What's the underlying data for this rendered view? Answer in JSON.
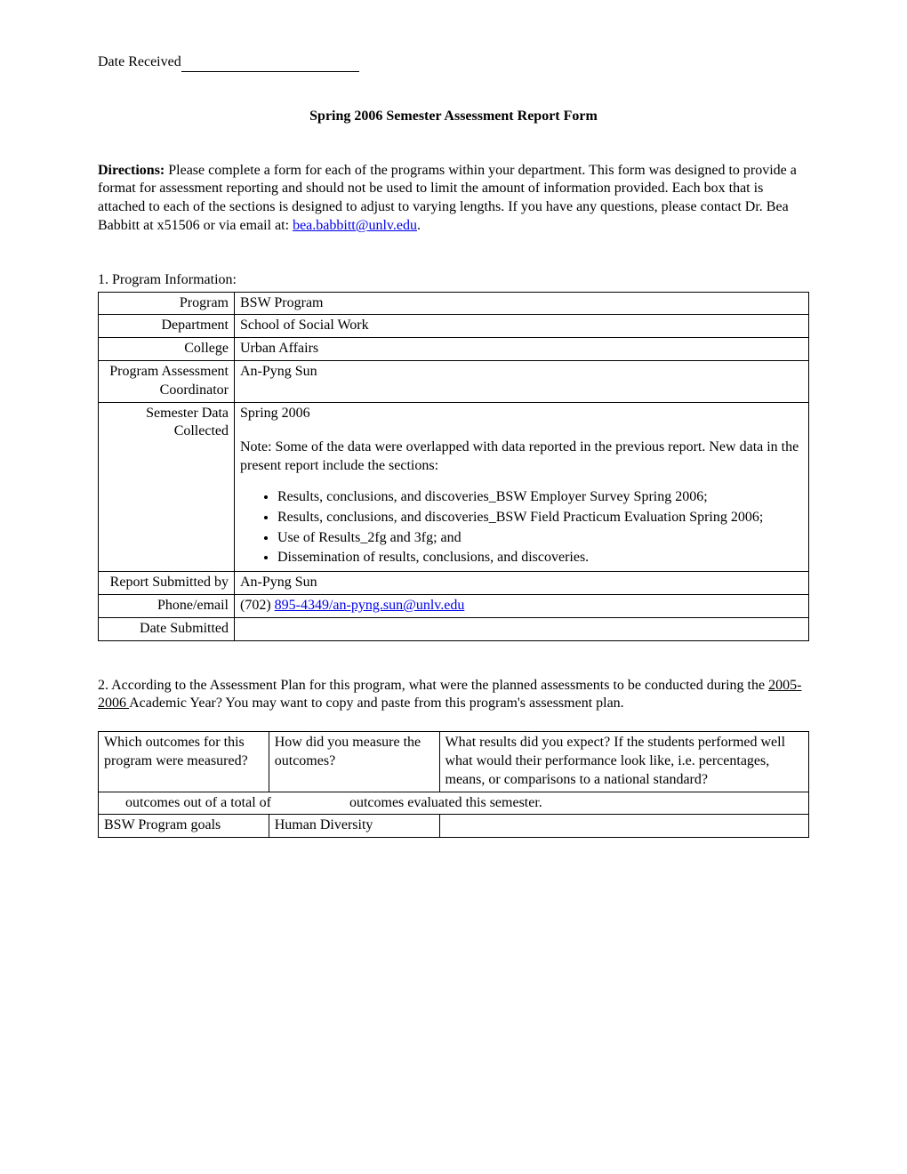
{
  "date_received_label": "Date Received",
  "title": "Spring 2006 Semester Assessment Report Form",
  "directions": {
    "label": "Directions:",
    "text_before_email": "  Please complete a form for each of the programs within your department.   This form was designed to provide a format for assessment reporting and should not be used to limit the amount of information provided.   Each box that is attached to each of the sections is designed to adjust to varying lengths.   If you have any questions, please contact Dr. Bea Babbitt at x51506 or via email at:  ",
    "email": "bea.babbitt@unlv.edu",
    "period": "."
  },
  "section1": {
    "heading": "1.   Program Information:",
    "rows": {
      "program": {
        "label": "Program",
        "value": "BSW Program"
      },
      "department": {
        "label": "Department",
        "value": "School of Social Work"
      },
      "college": {
        "label": "College",
        "value": "Urban Affairs"
      },
      "coordinator": {
        "label": "Program Assessment Coordinator",
        "value": "An-Pyng Sun"
      },
      "semester": {
        "label": "Semester Data Collected",
        "value_line1": "Spring 2006",
        "note": "Note: Some of the data were overlapped with data reported in the previous report. New data in the present report include the sections:",
        "bullets": [
          "Results, conclusions, and discoveries_BSW Employer Survey Spring 2006;",
          "Results, conclusions, and discoveries_BSW Field Practicum Evaluation Spring 2006;",
          "Use of Results_2fg and 3fg; and",
          "Dissemination of results, conclusions, and discoveries."
        ]
      },
      "submitted_by": {
        "label": "Report Submitted by",
        "value": "An-Pyng Sun"
      },
      "phone_email": {
        "label": "Phone/email",
        "prefix": "(702) ",
        "link": "895-4349/an-pyng.sun@unlv.edu"
      },
      "date_submitted": {
        "label": "Date Submitted",
        "value": ""
      }
    }
  },
  "section2": {
    "text_before_underline": "2.   According to the Assessment Plan for this program, what were the planned assessments to be conducted during the ",
    "underline": "2005-2006 ",
    "text_after_underline": "Academic Year?  You may want to copy and paste from this program's assessment plan.",
    "headers": {
      "col1": "Which outcomes for this program were measured?",
      "col2": "How did you measure the outcomes?",
      "col3": "What results did you expect? If the students performed well what would their performance look like, i.e. percentages, means, or comparisons to a national standard?"
    },
    "summary_row": "      outcomes out of a total of                      outcomes evaluated this semester.",
    "data_row": {
      "col1": "BSW Program goals",
      "col2": "Human Diversity",
      "col3": ""
    }
  }
}
